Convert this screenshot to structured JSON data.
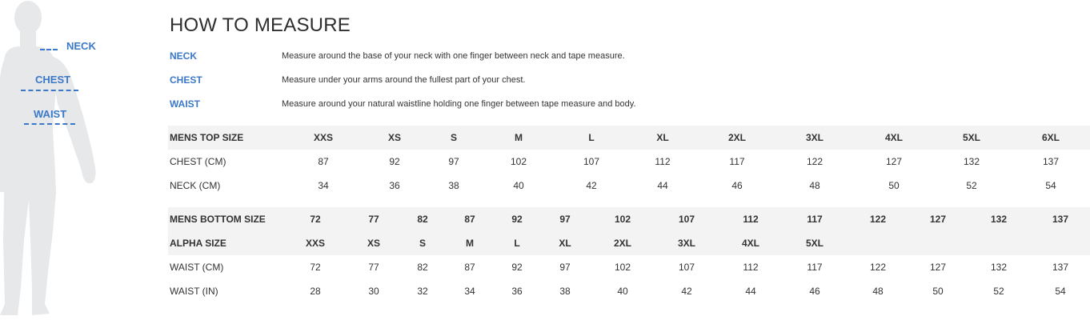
{
  "figure_labels": {
    "neck": "NECK",
    "chest": "CHEST",
    "waist": "WAIST"
  },
  "title": "HOW TO MEASURE",
  "measure": [
    {
      "name": "NECK",
      "desc": "Measure around the base of your neck with one finger between neck and tape measure."
    },
    {
      "name": "CHEST",
      "desc": "Measure under your arms around the fullest part of your chest."
    },
    {
      "name": "WAIST",
      "desc": "Measure around your natural waistline holding one finger between tape measure and body."
    }
  ],
  "top_table": {
    "header_label": "MENS TOP SIZE",
    "sizes": [
      "XXS",
      "XS",
      "S",
      "M",
      "L",
      "XL",
      "2XL",
      "3XL",
      "4XL",
      "5XL",
      "6XL"
    ],
    "rows": [
      {
        "label": "CHEST (CM)",
        "values": [
          "87",
          "92",
          "97",
          "102",
          "107",
          "112",
          "117",
          "122",
          "127",
          "132",
          "137"
        ]
      },
      {
        "label": "NECK (CM)",
        "values": [
          "34",
          "36",
          "38",
          "40",
          "42",
          "44",
          "46",
          "48",
          "50",
          "52",
          "54"
        ]
      }
    ]
  },
  "bottom_table": {
    "header_label": "MENS BOTTOM SIZE",
    "sizes": [
      "72",
      "77",
      "82",
      "87",
      "92",
      "97",
      "102",
      "107",
      "112",
      "117",
      "122",
      "127",
      "132",
      "137"
    ],
    "alpha_label": "ALPHA SIZE",
    "alpha": [
      "XXS",
      "XS",
      "S",
      "M",
      "L",
      "XL",
      "2XL",
      "3XL",
      "4XL",
      "5XL"
    ],
    "rows": [
      {
        "label": "WAIST (CM)",
        "values": [
          "72",
          "77",
          "82",
          "87",
          "92",
          "97",
          "102",
          "107",
          "112",
          "117",
          "122",
          "127",
          "132",
          "137"
        ]
      },
      {
        "label": "WAIST (IN)",
        "values": [
          "28",
          "30",
          "32",
          "34",
          "36",
          "38",
          "40",
          "42",
          "44",
          "46",
          "48",
          "50",
          "52",
          "54"
        ]
      }
    ]
  }
}
